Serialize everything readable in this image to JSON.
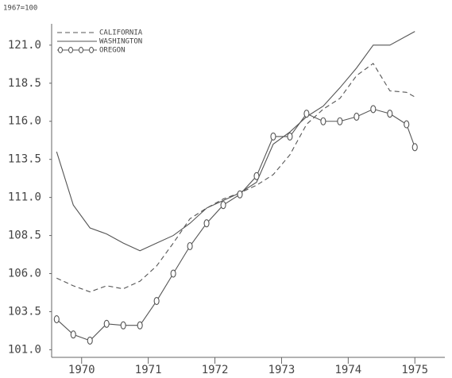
{
  "chart_data": {
    "type": "line",
    "subtitle": "1967=100",
    "x": [
      1969.625,
      1969.875,
      1970.125,
      1970.375,
      1970.625,
      1970.875,
      1971.125,
      1971.375,
      1971.625,
      1971.875,
      1972.125,
      1972.375,
      1972.625,
      1972.875,
      1973.125,
      1973.375,
      1973.625,
      1973.875,
      1974.125,
      1974.375,
      1974.625,
      1974.875,
      1975.0
    ],
    "series": [
      {
        "name": "CALIFORNIA",
        "color": "#555555",
        "style": "dashed",
        "values": [
          105.7,
          105.2,
          104.8,
          105.2,
          105.0,
          105.5,
          106.5,
          108.0,
          109.6,
          110.3,
          110.9,
          111.3,
          111.8,
          112.5,
          113.8,
          115.8,
          116.8,
          117.5,
          119.0,
          119.8,
          118.0,
          117.9,
          117.6
        ]
      },
      {
        "name": "WASHINGTON",
        "color": "#555555",
        "style": "solid",
        "values": [
          114.0,
          110.5,
          109.0,
          108.6,
          108.0,
          107.5,
          108.0,
          108.5,
          109.3,
          110.3,
          110.8,
          111.3,
          112.0,
          114.5,
          115.3,
          116.3,
          117.0,
          118.2,
          119.5,
          121.0,
          121.0,
          121.6,
          121.9
        ]
      },
      {
        "name": "OREGON",
        "color": "#555555",
        "style": "circles",
        "values": [
          103.0,
          102.0,
          101.6,
          102.7,
          102.6,
          102.6,
          104.2,
          106.0,
          107.8,
          109.3,
          110.5,
          111.2,
          112.4,
          115.0,
          115.0,
          116.5,
          116.0,
          116.0,
          116.3,
          116.8,
          116.5,
          115.8,
          114.3
        ]
      }
    ],
    "xlim": [
      1969.55,
      1975.45
    ],
    "xticks": [
      1970,
      1971,
      1972,
      1973,
      1974,
      1975
    ],
    "ylim": [
      100.5,
      122.4
    ],
    "yticks": [
      {
        "value": 101,
        "label": "101.0"
      },
      {
        "value": 103.5,
        "label": "103.5"
      },
      {
        "value": 106,
        "label": "106.0"
      },
      {
        "value": 108.5,
        "label": "108.5"
      },
      {
        "value": 111,
        "label": "111.0"
      },
      {
        "value": 113.5,
        "label": "113.5"
      },
      {
        "value": 116,
        "label": "116.0"
      },
      {
        "value": 118.5,
        "label": "118.5"
      },
      {
        "value": 121,
        "label": "121.0"
      }
    ],
    "legend": "upper-left",
    "grid": false
  }
}
